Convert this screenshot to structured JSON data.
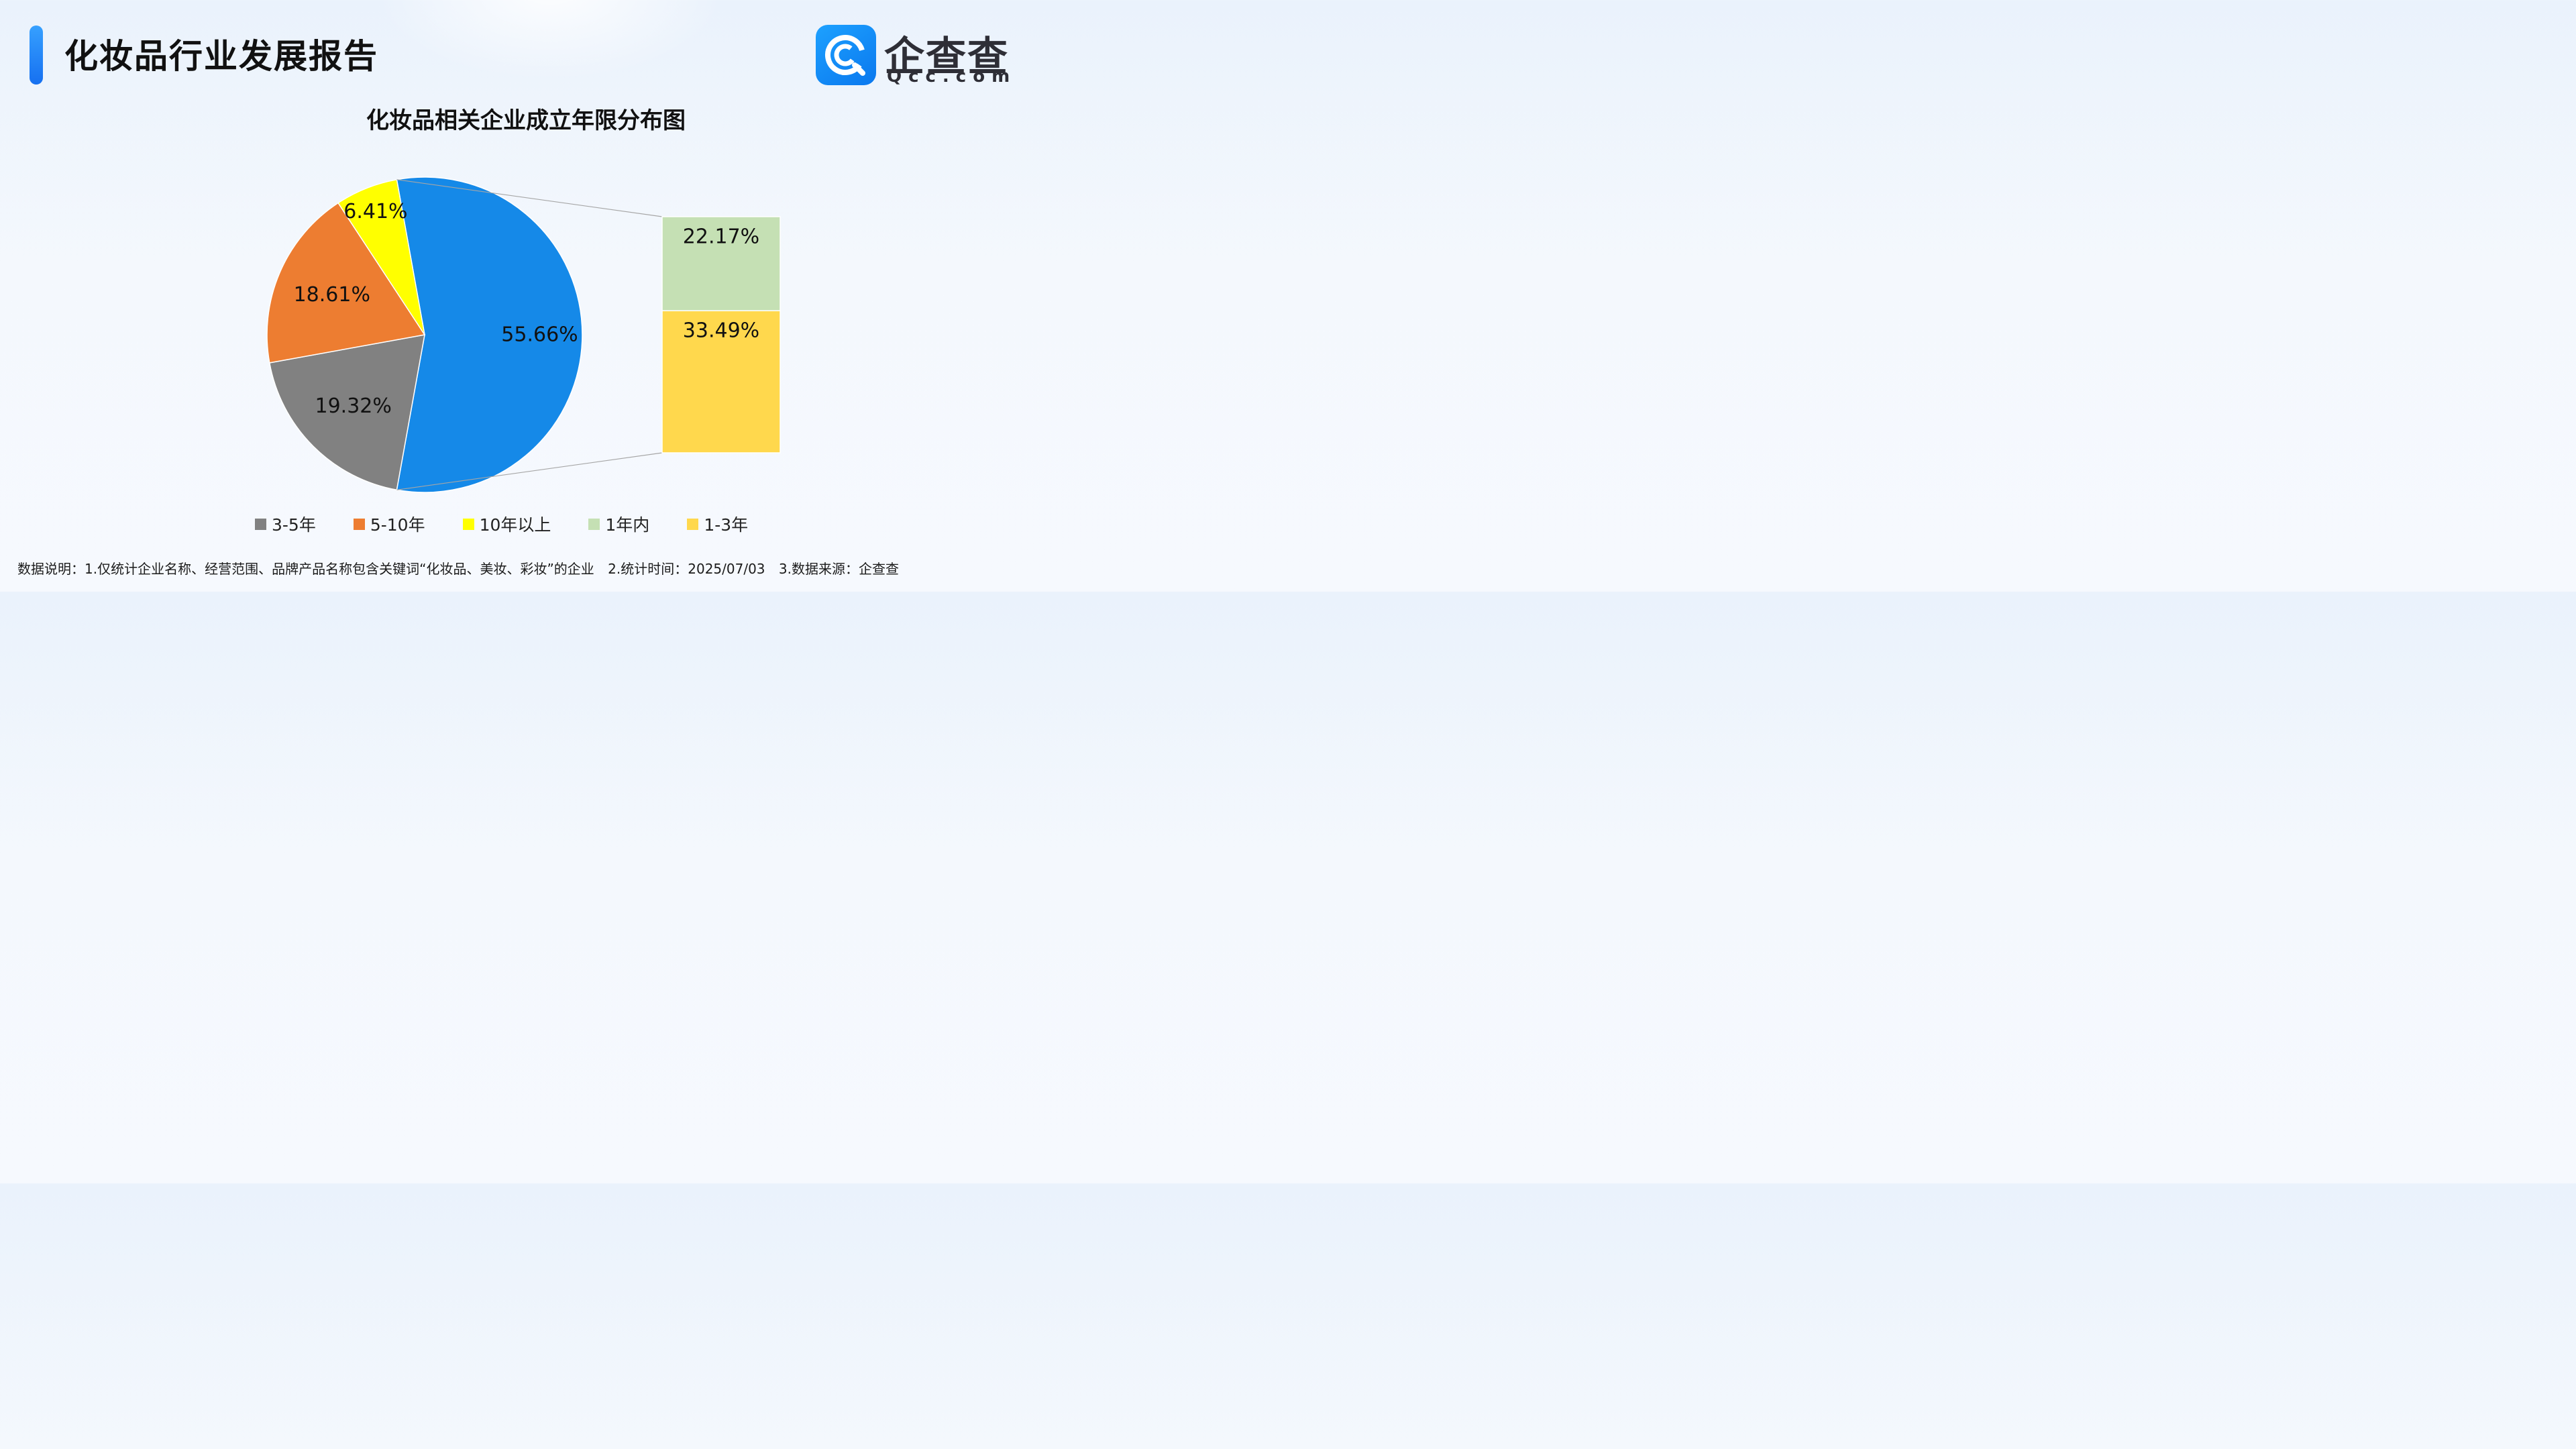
{
  "header": {
    "title": "化妆品行业发展报告",
    "brand_cn": "企查查",
    "brand_en": "Qcc.com",
    "accent_color": "#1a7ef0"
  },
  "chart_data": {
    "type": "pie",
    "title": "化妆品相关企业成立年限分布图",
    "slices": [
      {
        "label": "3-5年",
        "value": 19.32,
        "display": "19.32%",
        "color": "#818181"
      },
      {
        "label": "5-10年",
        "value": 18.61,
        "display": "18.61%",
        "color": "#ed7d31"
      },
      {
        "label": "10年以上",
        "value": 6.41,
        "display": "6.41%",
        "color": "#ffff00"
      },
      {
        "label": "1年内",
        "value": 22.17,
        "display": "22.17%",
        "color": "#c5e0b4",
        "group": "55.66%"
      },
      {
        "label": "1-3年",
        "value": 33.49,
        "display": "33.49%",
        "color": "#ffd84d",
        "group": "55.66%"
      }
    ],
    "combined_slice": {
      "display": "55.66%",
      "value": 55.66,
      "color": "#1589e8",
      "parts": [
        "1年内",
        "1-3年"
      ]
    },
    "legend": [
      "3-5年",
      "5-10年",
      "10年以上",
      "1年内",
      "1-3年"
    ],
    "legend_position": "bottom"
  },
  "footnote": {
    "note1": "数据说明：1.仅统计企业名称、经营范围、品牌产品名称包含关键词“化妆品、美妆、彩妆”的企业",
    "note2": "2.统计时间：2025/07/03",
    "note3": "3.数据来源：企查查"
  }
}
